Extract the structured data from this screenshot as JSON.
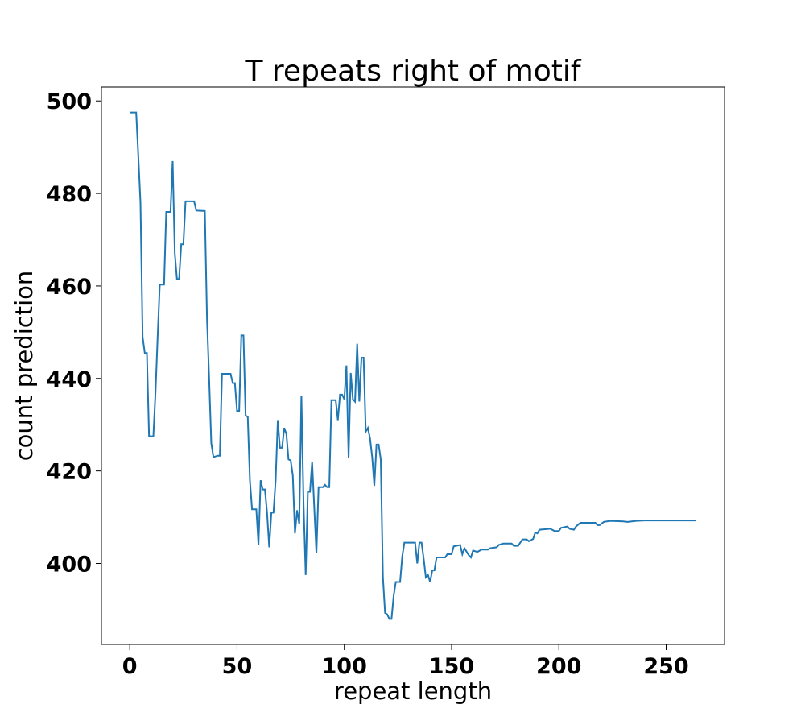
{
  "chart_data": {
    "type": "line",
    "title": "T repeats right of motif",
    "x_label": "repeat length",
    "y_label": "count prediction",
    "x": [
      0,
      3,
      4,
      5,
      6,
      7,
      8,
      9,
      11,
      12,
      13,
      14,
      16,
      17,
      19,
      20,
      21,
      22,
      23,
      24,
      25,
      26,
      30,
      31,
      35,
      36,
      37,
      38,
      39,
      41,
      42,
      43,
      47,
      48,
      49,
      50,
      51,
      52,
      53,
      54,
      55,
      56,
      57,
      59,
      60,
      61,
      62,
      63,
      64,
      65,
      66,
      67,
      68,
      69,
      70,
      71,
      72,
      73,
      74,
      75,
      76,
      77,
      78,
      79,
      80,
      81,
      82,
      83,
      84,
      85,
      86,
      87,
      88,
      90,
      91,
      92,
      93,
      94,
      96,
      97,
      98,
      99,
      100,
      101,
      102,
      103,
      104,
      105,
      106,
      107,
      108,
      109,
      110,
      111,
      112,
      113,
      114,
      115,
      116,
      117,
      118,
      119,
      120,
      121,
      122,
      123,
      124,
      126,
      127,
      128,
      133,
      134,
      135,
      136,
      137,
      138,
      139,
      140,
      141,
      142,
      143,
      147,
      148,
      150,
      151,
      154,
      155,
      156,
      158,
      159,
      160,
      162,
      164,
      167,
      168,
      171,
      172,
      174,
      178,
      179,
      181,
      183,
      185,
      186,
      188,
      189,
      190,
      191,
      196,
      198,
      200,
      201,
      204,
      205,
      207,
      208,
      210,
      217,
      218,
      219,
      221,
      224,
      230,
      232,
      236,
      240,
      264
    ],
    "series": [
      {
        "name": "count prediction",
        "color": "#1f77b4",
        "values": [
          497.5,
          497.5,
          488,
          478,
          449,
          445.5,
          445.5,
          427.5,
          427.5,
          437,
          449,
          460.3,
          460.3,
          476,
          476,
          487,
          467,
          461.5,
          461.5,
          469,
          469,
          478.3,
          478.3,
          476.3,
          476.2,
          453,
          440,
          426,
          423,
          423.3,
          423.3,
          441,
          441,
          439,
          439,
          433,
          433,
          449.3,
          449.3,
          432,
          431.7,
          418,
          411.7,
          411.7,
          404,
          418,
          416,
          416,
          411,
          403.5,
          411,
          411,
          418,
          431,
          425,
          425,
          429.3,
          428,
          422.5,
          422.3,
          419,
          406.5,
          411.5,
          408.5,
          436.3,
          413,
          397.5,
          415.5,
          415.5,
          422,
          412,
          402.2,
          416.5,
          416.5,
          417,
          416.5,
          416.5,
          435.3,
          435.3,
          431,
          436.5,
          436.5,
          435.5,
          442.8,
          422.8,
          441.2,
          435.5,
          435,
          447.5,
          435,
          444.5,
          444.5,
          428.5,
          429.3,
          427,
          423,
          416.8,
          425.7,
          425.7,
          422.5,
          397,
          389.3,
          389,
          388,
          388,
          393,
          396,
          396,
          401.5,
          404.5,
          404.5,
          400,
          404.5,
          404.5,
          401,
          397,
          397.5,
          396,
          398.5,
          398.5,
          401.3,
          401.3,
          402,
          402,
          403.7,
          404,
          402,
          403.3,
          401.8,
          401.3,
          402.8,
          402.5,
          403,
          403,
          403.3,
          403.5,
          404,
          404.3,
          404.3,
          403.8,
          403.8,
          405.2,
          405.2,
          404.8,
          405.3,
          406.7,
          406.5,
          407.3,
          407.5,
          407,
          407,
          407.7,
          408,
          407.5,
          407.3,
          408,
          408.8,
          408.8,
          408.3,
          408.3,
          409,
          409.2,
          409.1,
          409,
          409.2,
          409.3,
          409.3
        ]
      }
    ],
    "xlim": [
      -13.2,
      277.2
    ],
    "ylim": [
      382.5,
      503
    ],
    "xticks": [
      0,
      50,
      100,
      150,
      200,
      250
    ],
    "yticks": [
      400,
      420,
      440,
      460,
      480,
      500
    ],
    "grid": false
  }
}
